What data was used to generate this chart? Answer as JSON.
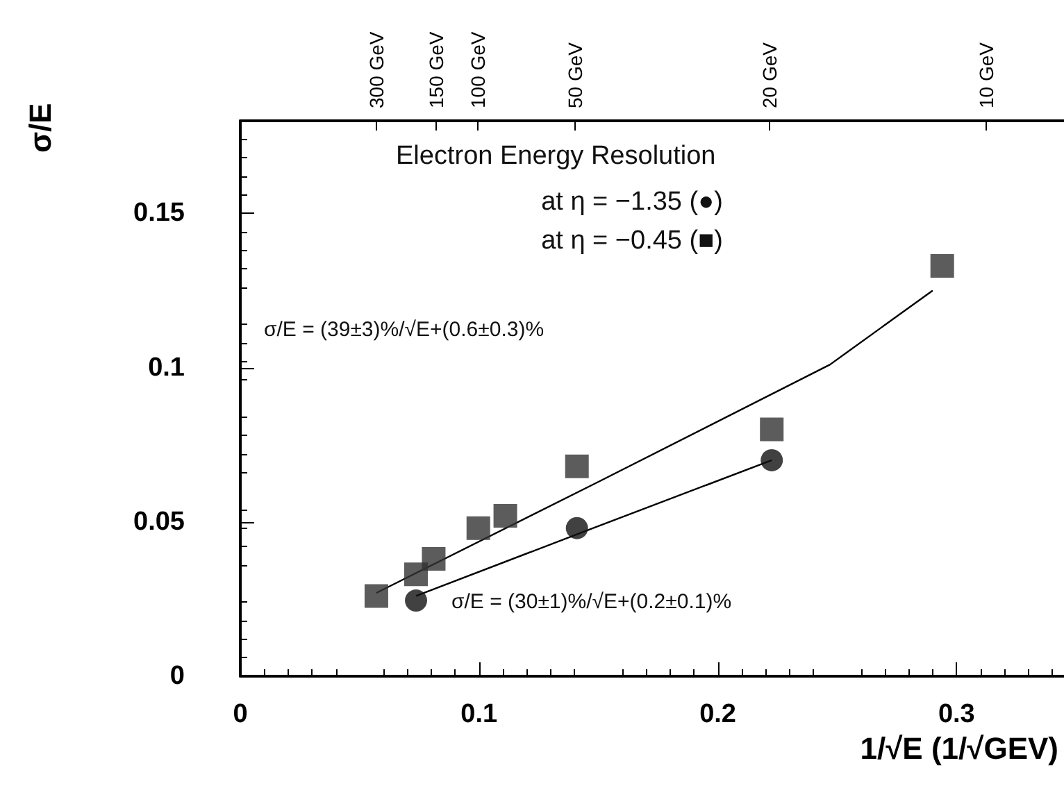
{
  "chart_data": {
    "type": "scatter",
    "title": "Electron Energy Resolution",
    "xlabel": "1/√E (1/√GEV)",
    "ylabel": "σ/E",
    "annotations": [
      "at η = −1.35 (●)",
      "at η = −0.45 (■)",
      "σ/E = (39±3)%/√E+(0.6±0.3)%",
      "σ/E = (30±1)%/√E+(0.2±0.1)%",
      "300 GeV",
      "150 GeV",
      "100 GeV",
      "50 GeV",
      "20 GeV",
      "10 GeV"
    ],
    "xlim": [
      0,
      0.345
    ],
    "xticks": [
      0,
      0.1,
      0.2,
      0.3
    ],
    "ylim": [
      0,
      0.18
    ],
    "yticks": [
      0,
      0.05,
      0.1,
      0.15
    ],
    "grid": false,
    "series": [
      {
        "marker": "circle",
        "color": "#111111",
        "x": [
          0.0736,
          0.141,
          0.2226
        ],
        "values": [
          0.0245,
          0.048,
          0.07
        ]
      },
      {
        "marker": "square",
        "color": "#333333",
        "x": [
          0.057,
          0.0736,
          0.081,
          0.0997,
          0.111,
          0.141,
          0.2226,
          0.294
        ],
        "values": [
          0.026,
          0.033,
          0.038,
          0.048,
          0.052,
          0.068,
          0.08,
          0.133
        ]
      },
      {
        "type": "line",
        "marker": "none",
        "color": "#000000",
        "x": [
          0.057,
          0.15,
          0.247,
          0.29
        ],
        "values": [
          0.027,
          0.063,
          0.101,
          0.125
        ]
      },
      {
        "type": "line",
        "marker": "none",
        "color": "#000000",
        "x": [
          0.0736,
          0.141,
          0.2226
        ],
        "values": [
          0.026,
          0.046,
          0.07
        ]
      }
    ]
  }
}
